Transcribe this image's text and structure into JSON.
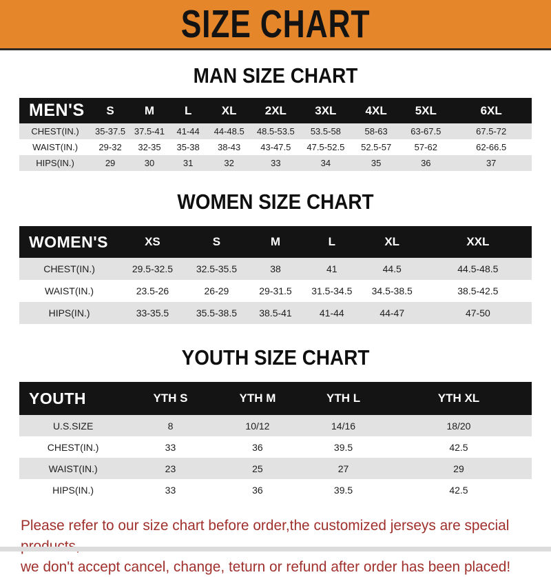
{
  "banner": {
    "title": "SIZE CHART"
  },
  "colors": {
    "banner_orange": "#E5862B",
    "table_header_black": "#141414",
    "row_gray": "#E2E2E2",
    "footer_red": "#A0302C"
  },
  "tables": [
    {
      "title": "MAN SIZE CHART",
      "header_label": "MEN'S",
      "columns": [
        "S",
        "M",
        "L",
        "XL",
        "2XL",
        "3XL",
        "4XL",
        "5XL",
        "6XL"
      ],
      "rows": [
        {
          "label": "CHEST(IN.)",
          "values": [
            "35-37.5",
            "37.5-41",
            "41-44",
            "44-48.5",
            "48.5-53.5",
            "53.5-58",
            "58-63",
            "63-67.5",
            "67.5-72"
          ]
        },
        {
          "label": "WAIST(IN.)",
          "values": [
            "29-32",
            "32-35",
            "35-38",
            "38-43",
            "43-47.5",
            "47.5-52.5",
            "52.5-57",
            "57-62",
            "62-66.5"
          ]
        },
        {
          "label": "HIPS(IN.)",
          "values": [
            "29",
            "30",
            "31",
            "32",
            "33",
            "34",
            "35",
            "36",
            "37"
          ]
        }
      ]
    },
    {
      "title": "WOMEN SIZE CHART",
      "header_label": "WOMEN'S",
      "columns": [
        "XS",
        "S",
        "M",
        "L",
        "XL",
        "XXL"
      ],
      "rows": [
        {
          "label": "CHEST(IN.)",
          "values": [
            "29.5-32.5",
            "32.5-35.5",
            "38",
            "41",
            "44.5",
            "44.5-48.5"
          ]
        },
        {
          "label": "WAIST(IN.)",
          "values": [
            "23.5-26",
            "26-29",
            "29-31.5",
            "31.5-34.5",
            "34.5-38.5",
            "38.5-42.5"
          ]
        },
        {
          "label": "HIPS(IN.)",
          "values": [
            "33-35.5",
            "35.5-38.5",
            "38.5-41",
            "41-44",
            "44-47",
            "47-50"
          ]
        }
      ]
    },
    {
      "title": "YOUTH SIZE CHART",
      "header_label": "YOUTH",
      "columns": [
        "YTH S",
        "YTH M",
        "YTH L",
        "YTH XL"
      ],
      "rows": [
        {
          "label": "U.S.SIZE",
          "values": [
            "8",
            "10/12",
            "14/16",
            "18/20"
          ]
        },
        {
          "label": "CHEST(IN.)",
          "values": [
            "33",
            "36",
            "39.5",
            "42.5"
          ]
        },
        {
          "label": "WAIST(IN.)",
          "values": [
            "23",
            "25",
            "27",
            "29"
          ]
        },
        {
          "label": "HIPS(IN.)",
          "values": [
            "33",
            "36",
            "39.5",
            "42.5"
          ]
        }
      ]
    }
  ],
  "footer": {
    "line1": "Please refer to our size chart before order,the customized jerseys are special products,",
    "line2": "we don't accept cancel, change, teturn or refund after order has been placed!"
  }
}
